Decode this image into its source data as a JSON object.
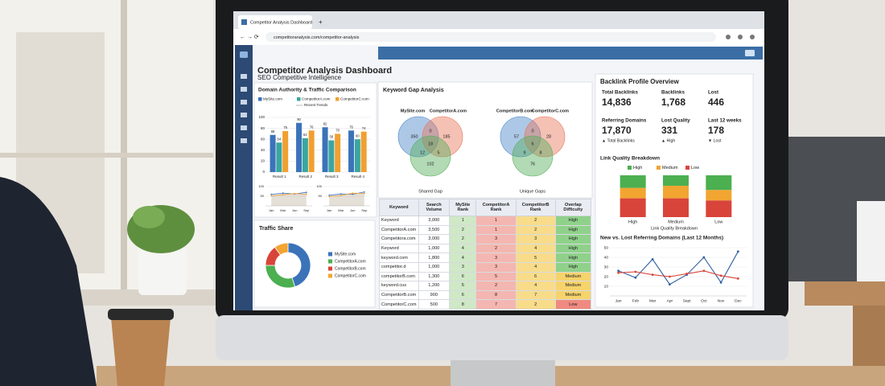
{
  "browser": {
    "tab_title": "Competitor Analysis Dashboard",
    "new_tab": "+",
    "url": "competitoranalysis.com/competitor-analysis"
  },
  "dashboard": {
    "title": "Competitor Analysis Dashboard",
    "subtitle": "SEO Competitive Intelligence",
    "domain_comparison": {
      "title": "Domain Authority & Traffic Comparison",
      "legend_note": "Recent Trends",
      "chart_data": {
        "type": "bar",
        "categories": [
          "Result 1",
          "Result 2",
          "Result 3",
          "Result 4"
        ],
        "series": [
          {
            "name": "MySite.com",
            "color": "#3b73b9",
            "values": [
              68,
              90,
              82,
              76
            ]
          },
          {
            "name": "CompetitorA.com",
            "color": "#3aa6a0",
            "values": [
              54,
              62,
              58,
              60
            ]
          },
          {
            "name": "CompetitorC.com",
            "color": "#f0a030",
            "values": [
              75,
              76,
              70,
              74
            ]
          }
        ],
        "ylim": [
          0,
          100
        ],
        "yticks": [
          0,
          20,
          40,
          60,
          80,
          100
        ]
      },
      "trend_charts": [
        {
          "type": "line",
          "categories": [
            "Jan",
            "Mar",
            "Jun",
            "Sep"
          ],
          "series": [
            {
              "color": "#3b73b9",
              "values": [
                60,
                66,
                62,
                70
              ]
            },
            {
              "color": "#f0a030",
              "values": [
                52,
                58,
                64,
                60
              ]
            }
          ],
          "ylim": [
            0,
            100
          ],
          "yticks": [
            50,
            100
          ]
        },
        {
          "type": "line",
          "categories": [
            "Jan",
            "Mar",
            "Jun",
            "Sep"
          ],
          "series": [
            {
              "color": "#3b73b9",
              "values": [
                55,
                62,
                60,
                72
              ]
            },
            {
              "color": "#f0a030",
              "values": [
                48,
                54,
                66,
                64
              ]
            }
          ],
          "ylim": [
            0,
            100
          ],
          "yticks": [
            50,
            100
          ]
        }
      ]
    },
    "traffic_share": {
      "title": "Traffic Share",
      "chart_data": {
        "type": "pie",
        "donut": true,
        "categories": [
          "MySite.com",
          "CompetitorA.com",
          "CompetitorB.com",
          "CompetitorC.com"
        ],
        "values": [
          45,
          30,
          15,
          10
        ],
        "colors": [
          "#3b73b9",
          "#4caf50",
          "#d9443a",
          "#f2a531"
        ]
      }
    },
    "keyword_gap": {
      "title": "Keyword Gap Analysis",
      "venns": [
        {
          "labels": [
            "MySite.com",
            "CompetitorA.com"
          ],
          "caption": "Shared Gap",
          "regions": [
            350,
            0,
            185,
            18,
            12,
            5,
            102
          ]
        },
        {
          "labels": [
            "CompetitorB.com",
            "CompetitorC.com"
          ],
          "caption": "Unique Gaps",
          "regions": [
            57,
            0,
            28,
            6,
            9,
            8,
            76
          ]
        }
      ],
      "table": {
        "columns": [
          "Keyword",
          "Search Volume",
          "MySite Rank",
          "CompetitorA Rank",
          "CompetitorB Rank",
          "Overlap Difficulty"
        ],
        "rows": [
          [
            "Keyword",
            "3,000",
            1,
            1,
            2,
            "High"
          ],
          [
            "CompetitorA.com",
            "3,500",
            2,
            1,
            2,
            "High"
          ],
          [
            "Competitora.com",
            "3,000",
            2,
            3,
            3,
            "High"
          ],
          [
            "Keyword",
            "1,000",
            4,
            2,
            4,
            "High"
          ],
          [
            "keyword.com",
            "1,800",
            4,
            3,
            5,
            "High"
          ],
          [
            "competitor.d",
            "1,000",
            3,
            3,
            4,
            "High"
          ],
          [
            "competitorB.com",
            "1,300",
            6,
            5,
            6,
            "Medium"
          ],
          [
            "keyword.cus",
            "1,200",
            5,
            2,
            4,
            "Medium"
          ],
          [
            "CompetitorB.com",
            "900",
            6,
            8,
            7,
            "Medium"
          ],
          [
            "CompetitorC.com",
            "500",
            8,
            7,
            2,
            "Low"
          ]
        ],
        "difficulty_colors": [
          "#8fd18a",
          "#8fd18a",
          "#8fd18a",
          "#8fd18a",
          "#8fd18a",
          "#8fd18a",
          "#f6d36b",
          "#f6d36b",
          "#f6d36b",
          "#f08a80"
        ]
      }
    },
    "backlinks": {
      "title": "Backlink Profile Overview",
      "stats": [
        {
          "label": "Total Backlinks",
          "value": "14,836"
        },
        {
          "label": "Backlinks",
          "value": "1,768"
        },
        {
          "label": "Lost",
          "value": "446"
        },
        {
          "label": "Referring Domains",
          "value": "17,870",
          "note": "▲ Total Backlinks",
          "note_color": "#3a9a4a"
        },
        {
          "label": "Lost Quality",
          "value": "331",
          "note": "▲ High",
          "note_color": "#3a9a4a"
        },
        {
          "label": "Last 12 weeks",
          "value": "178",
          "note": "▼ Lost",
          "note_color": "#d9443a"
        }
      ],
      "link_quality": {
        "title": "Link Quality Breakdown",
        "caption": "Link Quality Breakdown",
        "chart_data": {
          "type": "stacked-bar",
          "categories": [
            "High",
            "Medium",
            "Low"
          ],
          "series": [
            {
              "name": "Low",
              "color": "#d9443a",
              "values": [
                45,
                45,
                40
              ]
            },
            {
              "name": "Medium",
              "color": "#f2a531",
              "values": [
                25,
                30,
                25
              ]
            },
            {
              "name": "High",
              "color": "#4caf50",
              "values": [
                30,
                25,
                35
              ]
            }
          ],
          "ylim": [
            0,
            100
          ]
        }
      },
      "referring_domains": {
        "title": "New vs. Lost Referring Domains (Last 12 Months)",
        "chart_data": {
          "type": "line",
          "categories": [
            "Jan",
            "Feb",
            "Mar",
            "Apr",
            "Sept",
            "Oct",
            "Nov",
            "Dec"
          ],
          "series": [
            {
              "color": "#2f5f9e",
              "values": [
                26,
                19,
                38,
                12,
                22,
                40,
                14,
                46
              ]
            },
            {
              "color": "#d9443a",
              "values": [
                24,
                25,
                22,
                20,
                23,
                26,
                21,
                18
              ]
            }
          ],
          "ylim": [
            0,
            50
          ],
          "yticks": [
            10,
            20,
            30,
            40,
            50
          ]
        }
      }
    }
  }
}
